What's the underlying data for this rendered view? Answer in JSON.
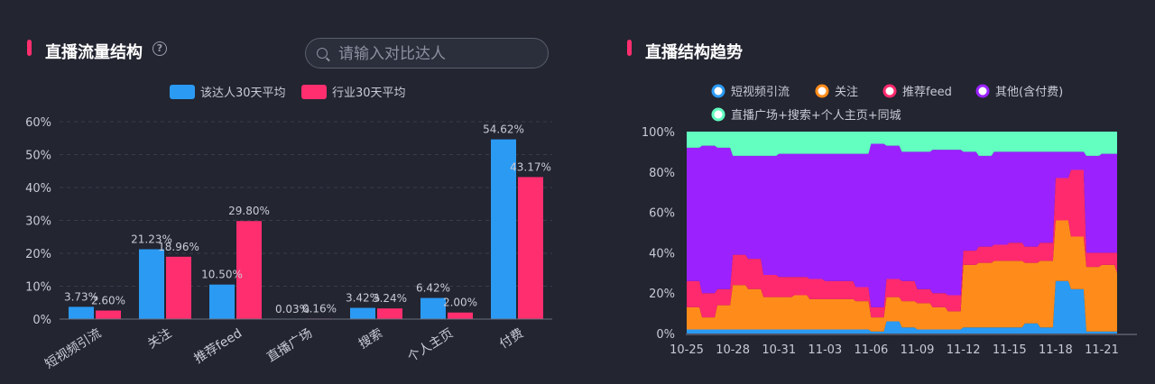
{
  "left_panel": {
    "title": "直播流量结构",
    "help_icon": "question-circle-icon",
    "search": {
      "placeholder": "请输入对比达人",
      "value": ""
    }
  },
  "right_panel": {
    "title": "直播结构趋势"
  },
  "colors": {
    "accent": "#ff2e6e",
    "blue": "#2b9af3",
    "pink": "#ff2e6e",
    "orange": "#ff8c1a",
    "magenta": "#ff2a6d",
    "purple": "#9b22ff",
    "green": "#62ffc0"
  },
  "chart_data": [
    {
      "type": "bar",
      "categories": [
        "短视频引流",
        "关注",
        "推荐feed",
        "直播广场",
        "搜索",
        "个人主页",
        "付费"
      ],
      "series": [
        {
          "name": "该达人30天平均",
          "values": [
            3.73,
            21.23,
            10.5,
            0.03,
            3.42,
            6.42,
            54.62
          ],
          "labels": [
            "3.73%",
            "21.23%",
            "10.50%",
            "0.03%",
            "3.42%",
            "6.42%",
            "54.62%"
          ]
        },
        {
          "name": "行业30天平均",
          "values": [
            2.6,
            18.96,
            29.8,
            0.16,
            3.24,
            2.0,
            43.17
          ],
          "labels": [
            "2.60%",
            "18.96%",
            "29.80%",
            "0.16%",
            "3.24%",
            "2.00%",
            "43.17%"
          ]
        }
      ],
      "ylim": [
        0,
        60
      ],
      "yticks": [
        "0%",
        "10%",
        "20%",
        "30%",
        "40%",
        "50%",
        "60%"
      ],
      "legend": "top-center",
      "grid": true
    },
    {
      "type": "area",
      "stacked": true,
      "x": [
        "10-25",
        "10-26",
        "10-27",
        "10-28",
        "10-29",
        "10-30",
        "10-31",
        "11-01",
        "11-02",
        "11-03",
        "11-04",
        "11-05",
        "11-06",
        "11-07",
        "11-08",
        "11-09",
        "11-10",
        "11-11",
        "11-12",
        "11-13",
        "11-14",
        "11-15",
        "11-16",
        "11-17",
        "11-18",
        "11-19",
        "11-20",
        "11-21",
        "11-22"
      ],
      "xticks": [
        "10-25",
        "10-28",
        "10-31",
        "11-03",
        "11-06",
        "11-09",
        "11-12",
        "11-15",
        "11-18",
        "11-21"
      ],
      "yticks": [
        "0%",
        "20%",
        "40%",
        "60%",
        "80%",
        "100%"
      ],
      "ylim": [
        0,
        100
      ],
      "series": [
        {
          "name": "短视频引流",
          "values": [
            2,
            2,
            2,
            2,
            2,
            2,
            2,
            2,
            2,
            2,
            2,
            2,
            1,
            6,
            3,
            2,
            2,
            2,
            3,
            3,
            3,
            3,
            5,
            3,
            26,
            22,
            1,
            1,
            1
          ]
        },
        {
          "name": "关注",
          "values": [
            11,
            6,
            12,
            22,
            20,
            16,
            16,
            17,
            15,
            15,
            15,
            14,
            7,
            12,
            13,
            13,
            11,
            9,
            31,
            32,
            33,
            33,
            30,
            33,
            30,
            26,
            32,
            33,
            29
          ]
        },
        {
          "name": "推荐feed",
          "values": [
            13,
            12,
            8,
            15,
            15,
            11,
            10,
            9,
            10,
            9,
            9,
            7,
            5,
            9,
            10,
            7,
            7,
            8,
            7,
            8,
            8,
            9,
            8,
            9,
            21,
            33,
            7,
            6,
            10
          ]
        },
        {
          "name": "其他(含付费)",
          "values": [
            66,
            73,
            70,
            49,
            51,
            59,
            61,
            61,
            62,
            63,
            63,
            66,
            81,
            66,
            64,
            68,
            71,
            72,
            49,
            45,
            46,
            45,
            47,
            45,
            13,
            9,
            48,
            49,
            49
          ]
        },
        {
          "name": "直播广场+搜索+个人主页+同城",
          "values": [
            8,
            7,
            8,
            12,
            12,
            12,
            11,
            11,
            11,
            11,
            11,
            11,
            6,
            7,
            10,
            10,
            9,
            9,
            10,
            12,
            10,
            10,
            10,
            10,
            10,
            10,
            12,
            11,
            11
          ]
        }
      ],
      "legend": "top",
      "grid": false
    }
  ]
}
